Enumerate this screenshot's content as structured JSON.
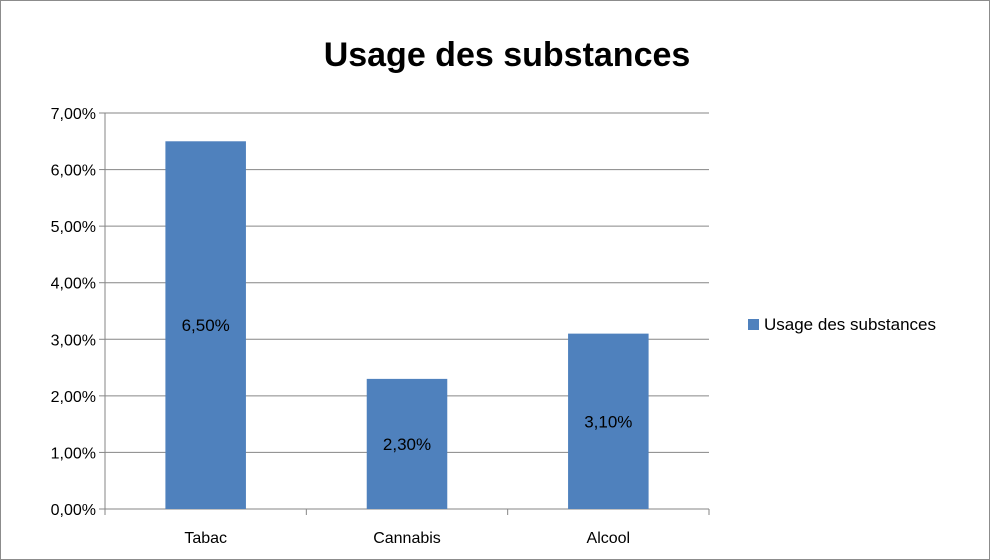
{
  "chart_data": {
    "type": "bar",
    "title": "Usage des substances",
    "categories": [
      "Tabac",
      "Cannabis",
      "Alcool"
    ],
    "series": [
      {
        "name": "Usage des substances",
        "values": [
          6.5,
          2.3,
          3.1
        ],
        "color": "#4f81bd"
      }
    ],
    "data_labels": [
      "6,50%",
      "2,30%",
      "3,10%"
    ],
    "ylim": [
      0,
      7
    ],
    "y_ticks": [
      "0,00%",
      "1,00%",
      "2,00%",
      "3,00%",
      "4,00%",
      "5,00%",
      "6,00%",
      "7,00%"
    ],
    "grid": true,
    "legend_position": "right",
    "xlabel": "",
    "ylabel": ""
  }
}
